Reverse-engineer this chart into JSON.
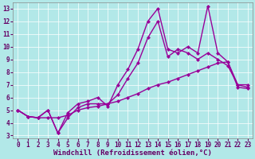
{
  "background_color": "#b2e8e8",
  "line_color": "#990099",
  "markersize": 2.5,
  "linewidth": 1.0,
  "xlabel": "Windchill (Refroidissement éolien,°C)",
  "xlabel_fontsize": 6.5,
  "tick_fontsize": 5.5,
  "xlim": [
    -0.5,
    23.5
  ],
  "ylim": [
    2.8,
    13.5
  ],
  "yticks": [
    3,
    4,
    5,
    6,
    7,
    8,
    9,
    10,
    11,
    12,
    13
  ],
  "xticks": [
    0,
    1,
    2,
    3,
    4,
    5,
    6,
    7,
    8,
    9,
    10,
    11,
    12,
    13,
    14,
    15,
    16,
    17,
    18,
    19,
    20,
    21,
    22,
    23
  ],
  "series1_y": [
    5.0,
    4.5,
    4.4,
    5.0,
    3.2,
    4.4,
    5.2,
    5.5,
    5.5,
    5.5,
    6.2,
    7.5,
    8.7,
    10.7,
    12.0,
    9.2,
    9.8,
    9.5,
    9.0,
    9.5,
    9.0,
    8.5,
    7.0,
    6.8
  ],
  "series2_y": [
    5.0,
    4.5,
    4.4,
    5.0,
    3.2,
    4.8,
    5.5,
    5.7,
    6.0,
    5.3,
    7.0,
    8.2,
    9.8,
    12.0,
    13.0,
    9.8,
    9.5,
    10.0,
    9.5,
    13.2,
    9.5,
    8.8,
    7.0,
    7.0
  ],
  "series3_y": [
    5.0,
    4.5,
    4.4,
    4.4,
    4.4,
    4.6,
    5.0,
    5.2,
    5.3,
    5.5,
    5.7,
    6.0,
    6.3,
    6.7,
    7.0,
    7.2,
    7.5,
    7.8,
    8.1,
    8.4,
    8.7,
    8.8,
    6.8,
    6.7
  ],
  "grid_color": "#ffffff",
  "tick_color": "#660066",
  "label_color": "#660066"
}
